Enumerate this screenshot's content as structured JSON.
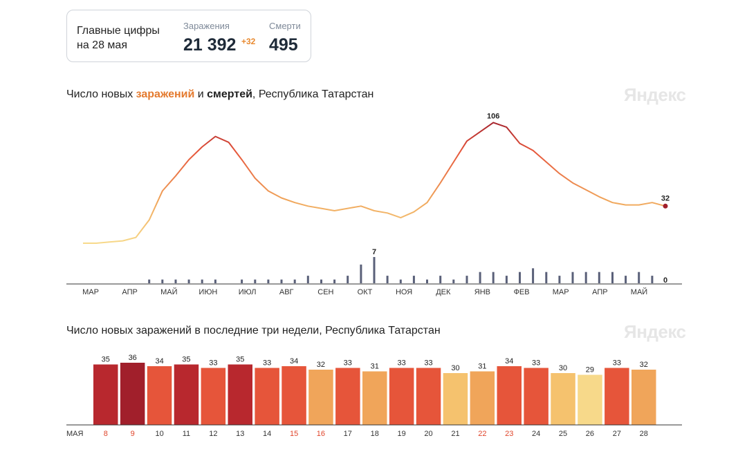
{
  "summary": {
    "title_line1": "Главные цифры",
    "title_line2": "на 28 мая",
    "infections_label": "Заражения",
    "infections_value": "21 392",
    "infections_delta": "+32",
    "deaths_label": "Смерти",
    "deaths_value": "495"
  },
  "brand": "Яндекс",
  "chart1_title": {
    "part1": "Число новых ",
    "bold_infections": "заражений",
    "part2": " и ",
    "bold_deaths": "смертей",
    "part3": ", Республика Татарстан"
  },
  "chart2_title": "Число новых заражений в последние три недели, Республика Татарстан",
  "colors": {
    "low": "#f7d98a",
    "mid": "#f0a55a",
    "high": "#e6553a",
    "peak": "#a11f2b",
    "deaths": "#5a6079",
    "axis": "#333333",
    "holiday": "#e0452b"
  },
  "chart_data": [
    {
      "type": "line",
      "title": "Число новых заражений и смертей, Республика Татарстан",
      "x_tick_labels": [
        "МАР",
        "АПР",
        "МАЙ",
        "ИЮН",
        "ИЮЛ",
        "АВГ",
        "СЕН",
        "ОКТ",
        "НОЯ",
        "ДЕК",
        "ЯНВ",
        "ФЕВ",
        "МАР",
        "АПР",
        "МАЙ"
      ],
      "annotations": {
        "infections_peak": "106",
        "infections_last": "32",
        "deaths_peak": "7",
        "deaths_last": "0"
      },
      "series": [
        {
          "name": "заражений",
          "values": [
            0,
            0,
            1,
            2,
            5,
            20,
            45,
            58,
            72,
            83,
            92,
            87,
            72,
            56,
            45,
            39,
            35,
            32,
            30,
            28,
            30,
            32,
            28,
            26,
            22,
            27,
            35,
            52,
            70,
            88,
            96,
            104,
            100,
            86,
            80,
            70,
            60,
            52,
            46,
            40,
            35,
            33,
            33,
            35,
            32
          ]
        },
        {
          "name": "смертей",
          "values": [
            0,
            0,
            0,
            0,
            0,
            1,
            1,
            1,
            1,
            1,
            1,
            0,
            1,
            1,
            1,
            1,
            1,
            2,
            1,
            1,
            2,
            5,
            7,
            2,
            1,
            2,
            1,
            2,
            1,
            2,
            3,
            3,
            2,
            3,
            4,
            3,
            2,
            3,
            3,
            3,
            3,
            2,
            3,
            2,
            0
          ]
        }
      ]
    },
    {
      "type": "bar",
      "title": "Число новых заражений в последние три недели, Республика Татарстан",
      "month_label": "МАЯ",
      "categories": [
        "8",
        "9",
        "10",
        "11",
        "12",
        "13",
        "14",
        "15",
        "16",
        "17",
        "18",
        "19",
        "20",
        "21",
        "22",
        "23",
        "24",
        "25",
        "26",
        "27",
        "28"
      ],
      "values": [
        35,
        36,
        34,
        35,
        33,
        35,
        33,
        34,
        32,
        33,
        31,
        33,
        33,
        30,
        31,
        34,
        33,
        30,
        29,
        33,
        32
      ],
      "holidays": [
        "8",
        "9",
        "15",
        "16",
        "22",
        "23"
      ]
    }
  ]
}
